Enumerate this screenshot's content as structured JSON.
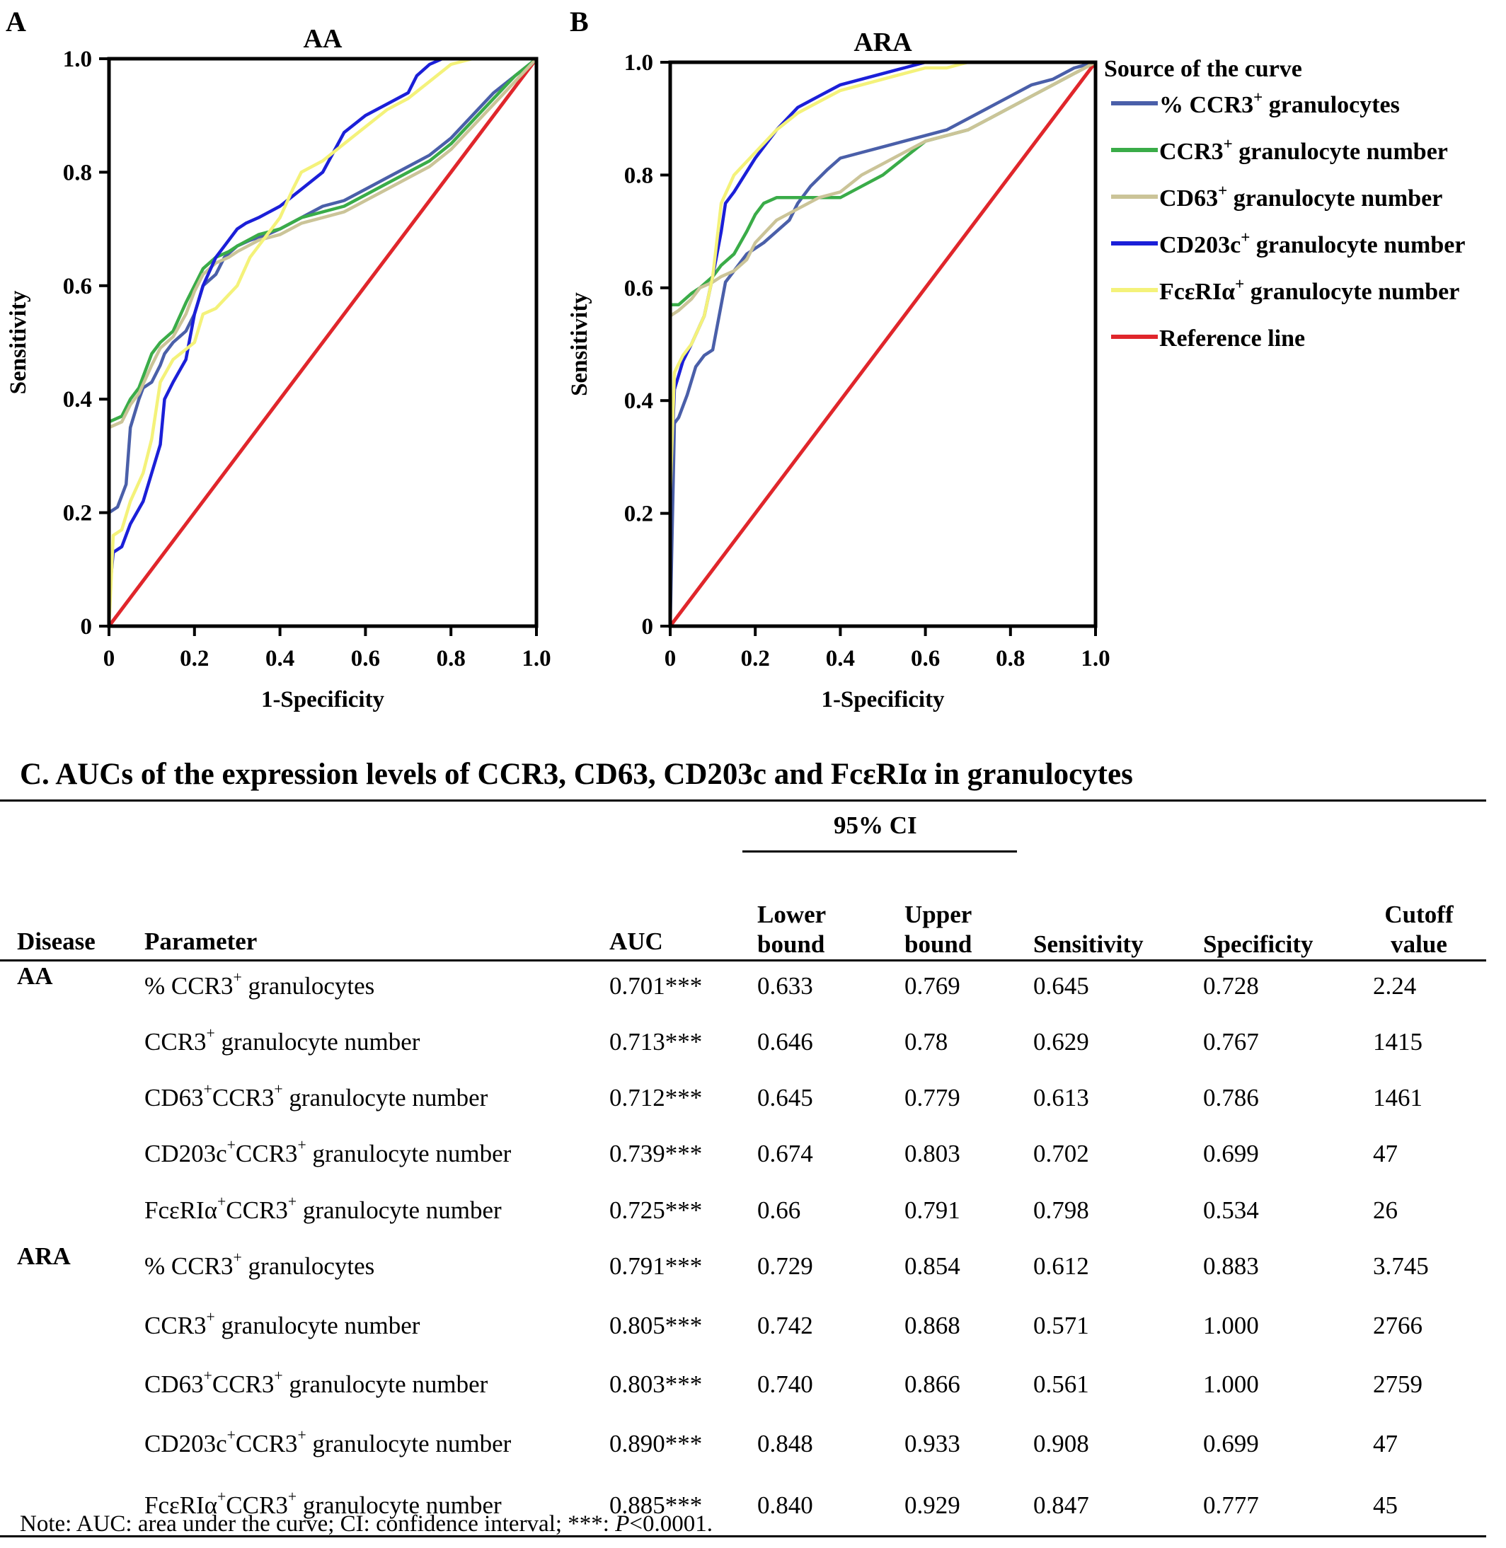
{
  "figure": {
    "panel_a_letter": "A",
    "panel_b_letter": "B",
    "legend_title": "Source of the curve",
    "legend_items": [
      {
        "label": "% CCR3",
        "sup": "+",
        "suffix": " granulocytes",
        "color": "#4a5fa9"
      },
      {
        "label": "CCR3",
        "sup": "+",
        "suffix": " granulocyte number",
        "color": "#3aac48"
      },
      {
        "label": "CD63",
        "sup": "+",
        "suffix": " granulocyte number",
        "color": "#cbc498"
      },
      {
        "label": "CD203c",
        "sup": "+",
        "suffix": " granulocyte number",
        "color": "#1b1fd8"
      },
      {
        "label": "FcεRIα",
        "sup": "+",
        "suffix": " granulocyte number",
        "color": "#f4f27a"
      },
      {
        "label": "Reference line",
        "sup": "",
        "suffix": "",
        "color": "#e0262b"
      }
    ]
  },
  "chart_data": [
    {
      "type": "line",
      "title": "AA",
      "xlabel": "1-Specificity",
      "ylabel": "Sensitivity",
      "xlim": [
        0,
        1
      ],
      "ylim": [
        0,
        1
      ],
      "xticks": [
        "0",
        "0.2",
        "0.4",
        "0.6",
        "0.8",
        "1.0"
      ],
      "yticks": [
        "0",
        "0.2",
        "0.4",
        "0.6",
        "0.8",
        "1.0"
      ],
      "series": [
        {
          "name": "% CCR3+ granulocytes",
          "color": "#4a5fa9",
          "x": [
            0,
            0,
            0.02,
            0.04,
            0.05,
            0.07,
            0.08,
            0.1,
            0.12,
            0.13,
            0.15,
            0.18,
            0.2,
            0.22,
            0.25,
            0.27,
            0.3,
            0.33,
            0.37,
            0.4,
            0.45,
            0.5,
            0.55,
            0.6,
            0.65,
            0.7,
            0.75,
            0.8,
            0.85,
            0.9,
            0.95,
            1.0
          ],
          "y": [
            0,
            0.2,
            0.21,
            0.25,
            0.35,
            0.4,
            0.42,
            0.43,
            0.46,
            0.48,
            0.5,
            0.52,
            0.55,
            0.6,
            0.62,
            0.65,
            0.67,
            0.68,
            0.69,
            0.7,
            0.72,
            0.74,
            0.75,
            0.77,
            0.79,
            0.81,
            0.83,
            0.86,
            0.9,
            0.94,
            0.97,
            1.0
          ]
        },
        {
          "name": "CCR3+ granulocyte number",
          "color": "#3aac48",
          "x": [
            0,
            0,
            0.03,
            0.05,
            0.07,
            0.1,
            0.12,
            0.15,
            0.18,
            0.2,
            0.22,
            0.25,
            0.28,
            0.3,
            0.35,
            0.4,
            0.45,
            0.5,
            0.55,
            0.6,
            0.65,
            0.7,
            0.75,
            0.8,
            0.85,
            0.9,
            0.95,
            1.0
          ],
          "y": [
            0,
            0.36,
            0.37,
            0.4,
            0.42,
            0.48,
            0.5,
            0.52,
            0.57,
            0.6,
            0.63,
            0.65,
            0.66,
            0.67,
            0.69,
            0.7,
            0.72,
            0.73,
            0.74,
            0.76,
            0.78,
            0.8,
            0.82,
            0.85,
            0.89,
            0.93,
            0.97,
            1.0
          ]
        },
        {
          "name": "CD63+ granulocyte number",
          "color": "#cbc498",
          "x": [
            0,
            0,
            0.03,
            0.05,
            0.07,
            0.1,
            0.12,
            0.15,
            0.18,
            0.2,
            0.22,
            0.25,
            0.28,
            0.3,
            0.35,
            0.4,
            0.45,
            0.5,
            0.55,
            0.6,
            0.65,
            0.7,
            0.75,
            0.8,
            0.85,
            0.9,
            0.95,
            1.0
          ],
          "y": [
            0,
            0.35,
            0.36,
            0.39,
            0.41,
            0.46,
            0.49,
            0.51,
            0.55,
            0.59,
            0.62,
            0.64,
            0.65,
            0.66,
            0.68,
            0.69,
            0.71,
            0.72,
            0.73,
            0.75,
            0.77,
            0.79,
            0.81,
            0.84,
            0.88,
            0.92,
            0.96,
            1.0
          ]
        },
        {
          "name": "CD203c+ granulocyte number",
          "color": "#1b1fd8",
          "x": [
            0,
            0,
            0.01,
            0.03,
            0.05,
            0.08,
            0.1,
            0.12,
            0.13,
            0.15,
            0.18,
            0.2,
            0.22,
            0.25,
            0.27,
            0.3,
            0.32,
            0.35,
            0.4,
            0.45,
            0.5,
            0.55,
            0.6,
            0.65,
            0.7,
            0.72,
            0.75,
            0.78,
            0.8,
            0.85,
            0.9,
            1.0
          ],
          "y": [
            0,
            0.05,
            0.13,
            0.14,
            0.18,
            0.22,
            0.27,
            0.32,
            0.4,
            0.43,
            0.47,
            0.55,
            0.6,
            0.65,
            0.67,
            0.7,
            0.71,
            0.72,
            0.74,
            0.77,
            0.8,
            0.87,
            0.9,
            0.92,
            0.94,
            0.97,
            0.99,
            1.0,
            1.0,
            1.0,
            1.0,
            1.0
          ]
        },
        {
          "name": "FcεRIα+ granulocyte number",
          "color": "#f4f27a",
          "x": [
            0,
            0.01,
            0.03,
            0.05,
            0.08,
            0.1,
            0.12,
            0.15,
            0.2,
            0.22,
            0.25,
            0.3,
            0.33,
            0.35,
            0.4,
            0.43,
            0.45,
            0.5,
            0.55,
            0.6,
            0.65,
            0.7,
            0.75,
            0.8,
            0.85,
            0.9,
            1.0
          ],
          "y": [
            0,
            0.16,
            0.17,
            0.22,
            0.27,
            0.33,
            0.43,
            0.47,
            0.5,
            0.55,
            0.56,
            0.6,
            0.65,
            0.67,
            0.72,
            0.77,
            0.8,
            0.82,
            0.85,
            0.88,
            0.91,
            0.93,
            0.96,
            0.99,
            1.0,
            1.0,
            1.0
          ]
        },
        {
          "name": "Reference line",
          "color": "#e0262b",
          "x": [
            0,
            1
          ],
          "y": [
            0,
            1
          ]
        }
      ]
    },
    {
      "type": "line",
      "title": "ARA",
      "xlabel": "1-Specificity",
      "ylabel": "Sensitivity",
      "xlim": [
        0,
        1
      ],
      "ylim": [
        0,
        1
      ],
      "xticks": [
        "0",
        "0.2",
        "0.4",
        "0.6",
        "0.8",
        "1.0"
      ],
      "yticks": [
        "0",
        "0.2",
        "0.4",
        "0.6",
        "0.8",
        "1.0"
      ],
      "series": [
        {
          "name": "% CCR3+ granulocytes",
          "color": "#4a5fa9",
          "x": [
            0,
            0.01,
            0.02,
            0.04,
            0.06,
            0.08,
            0.1,
            0.12,
            0.13,
            0.15,
            0.18,
            0.2,
            0.22,
            0.25,
            0.28,
            0.3,
            0.33,
            0.37,
            0.4,
            0.45,
            0.5,
            0.55,
            0.6,
            0.65,
            0.7,
            0.75,
            0.8,
            0.85,
            0.9,
            0.95,
            1.0
          ],
          "y": [
            0,
            0.36,
            0.37,
            0.41,
            0.46,
            0.48,
            0.49,
            0.57,
            0.61,
            0.63,
            0.66,
            0.67,
            0.68,
            0.7,
            0.72,
            0.75,
            0.78,
            0.81,
            0.83,
            0.84,
            0.85,
            0.86,
            0.87,
            0.88,
            0.9,
            0.92,
            0.94,
            0.96,
            0.97,
            0.99,
            1.0
          ]
        },
        {
          "name": "CCR3+ granulocyte number",
          "color": "#3aac48",
          "x": [
            0,
            0,
            0.02,
            0.05,
            0.07,
            0.1,
            0.12,
            0.15,
            0.18,
            0.2,
            0.22,
            0.25,
            0.3,
            0.35,
            0.4,
            0.45,
            0.5,
            0.55,
            0.6,
            0.65,
            0.7,
            0.75,
            0.8,
            0.85,
            0.9,
            0.95,
            1.0
          ],
          "y": [
            0,
            0.57,
            0.57,
            0.59,
            0.6,
            0.62,
            0.64,
            0.66,
            0.7,
            0.73,
            0.75,
            0.76,
            0.76,
            0.76,
            0.76,
            0.78,
            0.8,
            0.83,
            0.86,
            0.87,
            0.88,
            0.9,
            0.92,
            0.94,
            0.96,
            0.98,
            1.0
          ]
        },
        {
          "name": "CD63+ granulocyte number",
          "color": "#cbc498",
          "x": [
            0,
            0,
            0.02,
            0.05,
            0.07,
            0.1,
            0.12,
            0.15,
            0.18,
            0.2,
            0.25,
            0.3,
            0.35,
            0.4,
            0.45,
            0.5,
            0.55,
            0.6,
            0.65,
            0.7,
            0.75,
            0.8,
            0.85,
            0.9,
            0.95,
            1.0
          ],
          "y": [
            0,
            0.55,
            0.56,
            0.58,
            0.6,
            0.61,
            0.62,
            0.63,
            0.65,
            0.68,
            0.72,
            0.74,
            0.76,
            0.77,
            0.8,
            0.82,
            0.84,
            0.86,
            0.87,
            0.88,
            0.9,
            0.92,
            0.94,
            0.96,
            0.98,
            1.0
          ]
        },
        {
          "name": "CD203c+ granulocyte number",
          "color": "#1b1fd8",
          "x": [
            0,
            0,
            0.01,
            0.03,
            0.05,
            0.08,
            0.1,
            0.12,
            0.13,
            0.15,
            0.2,
            0.25,
            0.3,
            0.35,
            0.4,
            0.45,
            0.5,
            0.55,
            0.6,
            0.65,
            0.7,
            0.75,
            0.8,
            0.9,
            1.0
          ],
          "y": [
            0,
            0.24,
            0.42,
            0.47,
            0.5,
            0.55,
            0.62,
            0.7,
            0.75,
            0.77,
            0.83,
            0.88,
            0.92,
            0.94,
            0.96,
            0.97,
            0.98,
            0.99,
            1.0,
            1.0,
            1.0,
            1.0,
            1.0,
            1.0,
            1.0
          ]
        },
        {
          "name": "FcεRIα+ granulocyte number",
          "color": "#f4f27a",
          "x": [
            0,
            0,
            0.01,
            0.03,
            0.05,
            0.08,
            0.1,
            0.12,
            0.15,
            0.2,
            0.25,
            0.3,
            0.35,
            0.4,
            0.45,
            0.5,
            0.55,
            0.6,
            0.65,
            0.7,
            0.8,
            0.9,
            1.0
          ],
          "y": [
            0,
            0.23,
            0.45,
            0.48,
            0.5,
            0.55,
            0.62,
            0.75,
            0.8,
            0.84,
            0.88,
            0.91,
            0.93,
            0.95,
            0.96,
            0.97,
            0.98,
            0.99,
            0.99,
            1.0,
            1.0,
            1.0,
            1.0
          ]
        },
        {
          "name": "Reference line",
          "color": "#e0262b",
          "x": [
            0,
            1
          ],
          "y": [
            0,
            1
          ]
        }
      ]
    }
  ],
  "table": {
    "title_prefix": "C. ",
    "title": "AUCs of the expression levels of CCR3, CD63, CD203c and FcεRIα in granulocytes",
    "headers": {
      "disease": "Disease",
      "parameter": "Parameter",
      "auc": "AUC",
      "ci_group": "95% CI",
      "lower_1": "Lower",
      "lower_2": "bound",
      "upper_1": "Upper",
      "upper_2": "bound",
      "sensitivity": "Sensitivity",
      "specificity": "Specificity",
      "cutoff_1": "Cutoff",
      "cutoff_2": "value"
    },
    "rows": [
      {
        "disease": "AA",
        "parameter": [
          [
            "% CCR3",
            ""
          ],
          [
            "+",
            "sup"
          ],
          [
            " granulocytes",
            ""
          ]
        ],
        "auc": "0.701***",
        "lower": "0.633",
        "upper": "0.769",
        "sens": "0.645",
        "spec": "0.728",
        "cutoff": "2.24"
      },
      {
        "disease": "",
        "parameter": [
          [
            "CCR3",
            ""
          ],
          [
            "+",
            "sup"
          ],
          [
            " granulocyte number",
            ""
          ]
        ],
        "auc": "0.713***",
        "lower": "0.646",
        "upper": "0.78",
        "sens": "0.629",
        "spec": "0.767",
        "cutoff": "1415"
      },
      {
        "disease": "",
        "parameter": [
          [
            "CD63",
            ""
          ],
          [
            "+",
            "sup"
          ],
          [
            "CCR3",
            ""
          ],
          [
            "+",
            "sup"
          ],
          [
            " granulocyte number",
            ""
          ]
        ],
        "auc": "0.712***",
        "lower": "0.645",
        "upper": "0.779",
        "sens": "0.613",
        "spec": "0.786",
        "cutoff": "1461"
      },
      {
        "disease": "",
        "parameter": [
          [
            "CD203c",
            ""
          ],
          [
            "+",
            "sup"
          ],
          [
            "CCR3",
            ""
          ],
          [
            "+",
            "sup"
          ],
          [
            " granulocyte number",
            ""
          ]
        ],
        "auc": "0.739***",
        "lower": "0.674",
        "upper": "0.803",
        "sens": "0.702",
        "spec": "0.699",
        "cutoff": "47"
      },
      {
        "disease": "",
        "parameter": [
          [
            "FcεRIα",
            ""
          ],
          [
            "+",
            "sup"
          ],
          [
            "CCR3",
            ""
          ],
          [
            "+",
            "sup"
          ],
          [
            " granulocyte number",
            ""
          ]
        ],
        "auc": "0.725***",
        "lower": "0.66",
        "upper": "0.791",
        "sens": "0.798",
        "spec": "0.534",
        "cutoff": "26"
      },
      {
        "disease": "ARA",
        "parameter": [
          [
            "% CCR3",
            ""
          ],
          [
            "+",
            "sup"
          ],
          [
            " granulocytes",
            ""
          ]
        ],
        "auc": "0.791***",
        "lower": "0.729",
        "upper": "0.854",
        "sens": "0.612",
        "spec": "0.883",
        "cutoff": "3.745"
      },
      {
        "disease": "",
        "parameter": [
          [
            "CCR3",
            ""
          ],
          [
            "+",
            "sup"
          ],
          [
            " granulocyte number",
            ""
          ]
        ],
        "auc": "0.805***",
        "lower": "0.742",
        "upper": "0.868",
        "sens": "0.571",
        "spec": "1.000",
        "cutoff": "2766"
      },
      {
        "disease": "",
        "parameter": [
          [
            "CD63",
            ""
          ],
          [
            "+",
            "sup"
          ],
          [
            "CCR3",
            ""
          ],
          [
            "+",
            "sup"
          ],
          [
            " granulocyte number",
            ""
          ]
        ],
        "auc": "0.803***",
        "lower": "0.740",
        "upper": "0.866",
        "sens": "0.561",
        "spec": "1.000",
        "cutoff": "2759"
      },
      {
        "disease": "",
        "parameter": [
          [
            "CD203c",
            ""
          ],
          [
            "+",
            "sup"
          ],
          [
            "CCR3",
            ""
          ],
          [
            "+",
            "sup"
          ],
          [
            " granulocyte number",
            ""
          ]
        ],
        "auc": "0.890***",
        "lower": "0.848",
        "upper": "0.933",
        "sens": "0.908",
        "spec": "0.699",
        "cutoff": "47"
      },
      {
        "disease": "",
        "parameter": [
          [
            "FcεRIα",
            ""
          ],
          [
            "+",
            "sup"
          ],
          [
            "CCR3",
            ""
          ],
          [
            "+",
            "sup"
          ],
          [
            " granulocyte number",
            ""
          ]
        ],
        "auc": "0.885***",
        "lower": "0.840",
        "upper": "0.929",
        "sens": "0.847",
        "spec": "0.777",
        "cutoff": "45"
      }
    ],
    "note_before": "Note: AUC: area under the curve; CI: confidence interval; ***: ",
    "note_italic": "P",
    "note_after": "<0.0001."
  }
}
